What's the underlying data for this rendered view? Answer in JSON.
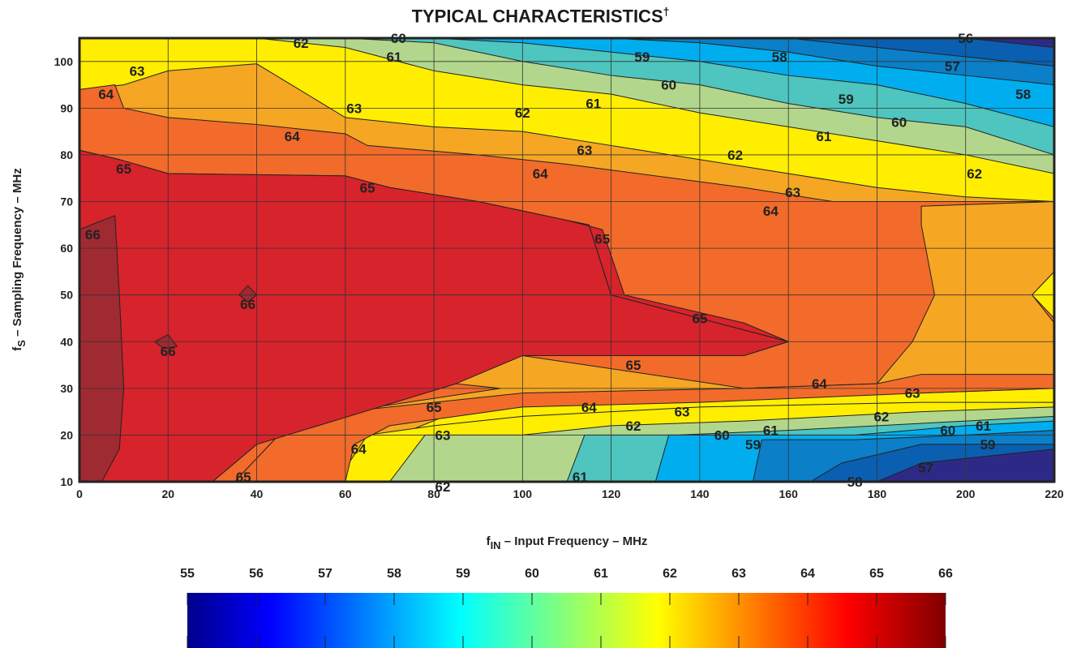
{
  "page": {
    "title": "TYPICAL CHARACTERISTICS",
    "title_mark": "†"
  },
  "chart_data": {
    "type": "heatmap",
    "subtype": "filled-contour",
    "xlabel": "f_IN – Input Frequency – MHz",
    "xlabel_parts": {
      "prefix": "f",
      "sub": "IN",
      "rest": " – Input Frequency – MHz"
    },
    "ylabel": "f_S – Sampling Frequency – MHz",
    "ylabel_parts": {
      "prefix": "f",
      "sub": "S",
      "rest": " – Sampling Frequency – MHz"
    },
    "xlim": [
      0,
      220
    ],
    "ylim": [
      10,
      105
    ],
    "x_ticks": [
      0,
      20,
      40,
      60,
      80,
      100,
      120,
      140,
      160,
      180,
      200,
      220
    ],
    "y_ticks": [
      10,
      20,
      30,
      40,
      50,
      60,
      70,
      80,
      90,
      100
    ],
    "grid": true,
    "colorbar": {
      "position": "bottom",
      "ticks": [
        55,
        56,
        57,
        58,
        59,
        60,
        61,
        62,
        63,
        64,
        65,
        66
      ],
      "min": 55,
      "max": 66
    },
    "level_colors": {
      "56": "#2d2a87",
      "57": "#0a5fb0",
      "58": "#0b7fc7",
      "59": "#00aeef",
      "60": "#4ec5be",
      "61": "#b2d78c",
      "62": "#ffee00",
      "63": "#f5a623",
      "64": "#f26b2a",
      "65": "#d7232b",
      "66": "#a02a32"
    },
    "regions": [
      {
        "level": 65,
        "points": [
          [
            0,
            10
          ],
          [
            0,
            81
          ],
          [
            9,
            79
          ],
          [
            20,
            76
          ],
          [
            60,
            75.5
          ],
          [
            70,
            73
          ],
          [
            90,
            70
          ],
          [
            110,
            66
          ],
          [
            115,
            65
          ],
          [
            120,
            50
          ],
          [
            160,
            40
          ],
          [
            150,
            37
          ],
          [
            100,
            37
          ],
          [
            85,
            31
          ],
          [
            40,
            18
          ],
          [
            30,
            10
          ]
        ]
      },
      {
        "level": 66,
        "points": [
          [
            0,
            10
          ],
          [
            0,
            64
          ],
          [
            8,
            67
          ],
          [
            9,
            50
          ],
          [
            10,
            30
          ],
          [
            9,
            17
          ],
          [
            5,
            10
          ]
        ]
      },
      {
        "level": 66,
        "points": [
          [
            17,
            40
          ],
          [
            20,
            41.5
          ],
          [
            22,
            39
          ],
          [
            19,
            38.5
          ]
        ]
      },
      {
        "level": 66,
        "points": [
          [
            36,
            50
          ],
          [
            38,
            52
          ],
          [
            40,
            50
          ],
          [
            38,
            48.5
          ]
        ]
      },
      {
        "level": 65,
        "points": [
          [
            110,
            66
          ],
          [
            118,
            64
          ],
          [
            123,
            50
          ],
          [
            150,
            44
          ],
          [
            160,
            40
          ],
          [
            120,
            50
          ],
          [
            115,
            65
          ]
        ]
      }
    ],
    "bands": [
      {
        "level": 64,
        "points": [
          [
            0,
            81
          ],
          [
            0,
            94
          ],
          [
            8,
            95
          ],
          [
            10,
            90
          ],
          [
            20,
            88
          ],
          [
            40,
            86.5
          ],
          [
            60,
            84.5
          ],
          [
            65,
            82
          ],
          [
            90,
            80
          ],
          [
            110,
            78
          ],
          [
            150,
            73
          ],
          [
            170,
            70
          ],
          [
            220,
            70
          ],
          [
            220,
            44
          ],
          [
            215,
            50
          ],
          [
            220,
            55
          ],
          [
            220,
            70
          ],
          [
            190,
            69
          ],
          [
            190,
            65
          ],
          [
            193,
            50
          ],
          [
            188,
            40
          ],
          [
            180,
            31
          ],
          [
            150,
            30
          ],
          [
            100,
            37
          ],
          [
            150,
            37
          ],
          [
            160,
            40
          ],
          [
            120,
            50
          ],
          [
            115,
            65
          ],
          [
            110,
            66
          ],
          [
            90,
            70
          ],
          [
            70,
            73
          ],
          [
            60,
            75.5
          ],
          [
            20,
            76
          ],
          [
            9,
            79
          ]
        ]
      },
      {
        "level": 64,
        "points": [
          [
            30,
            10
          ],
          [
            40,
            18
          ],
          [
            85,
            31
          ],
          [
            95,
            30
          ],
          [
            60,
            25
          ],
          [
            45,
            20
          ],
          [
            35,
            10
          ]
        ]
      },
      {
        "level": 64,
        "points": [
          [
            35,
            10
          ],
          [
            45,
            20
          ],
          [
            60,
            25
          ],
          [
            100,
            29
          ],
          [
            150,
            30
          ],
          [
            180,
            31
          ],
          [
            190,
            33
          ],
          [
            220,
            33
          ],
          [
            220,
            30
          ],
          [
            190,
            29
          ],
          [
            140,
            27
          ],
          [
            100,
            26
          ],
          [
            70,
            22
          ],
          [
            62,
            18
          ],
          [
            60,
            10
          ]
        ]
      }
    ],
    "contour_labels": [
      {
        "x": 13,
        "y": 98,
        "v": "63"
      },
      {
        "x": 6,
        "y": 93,
        "v": "64"
      },
      {
        "x": 50,
        "y": 104,
        "v": "62"
      },
      {
        "x": 72,
        "y": 105,
        "v": "60"
      },
      {
        "x": 71,
        "y": 101,
        "v": "61"
      },
      {
        "x": 127,
        "y": 101,
        "v": "59"
      },
      {
        "x": 158,
        "y": 101,
        "v": "58"
      },
      {
        "x": 200,
        "y": 105,
        "v": "56"
      },
      {
        "x": 197,
        "y": 99,
        "v": "57"
      },
      {
        "x": 133,
        "y": 95,
        "v": "60"
      },
      {
        "x": 116,
        "y": 91,
        "v": "61"
      },
      {
        "x": 100,
        "y": 89,
        "v": "62"
      },
      {
        "x": 62,
        "y": 90,
        "v": "63"
      },
      {
        "x": 48,
        "y": 84,
        "v": "64"
      },
      {
        "x": 173,
        "y": 92,
        "v": "59"
      },
      {
        "x": 185,
        "y": 87,
        "v": "60"
      },
      {
        "x": 168,
        "y": 84,
        "v": "61"
      },
      {
        "x": 213,
        "y": 93,
        "v": "58"
      },
      {
        "x": 114,
        "y": 81,
        "v": "63"
      },
      {
        "x": 148,
        "y": 80,
        "v": "62"
      },
      {
        "x": 10,
        "y": 77,
        "v": "65"
      },
      {
        "x": 104,
        "y": 76,
        "v": "64"
      },
      {
        "x": 65,
        "y": 73,
        "v": "65"
      },
      {
        "x": 161,
        "y": 72,
        "v": "63"
      },
      {
        "x": 202,
        "y": 76,
        "v": "62"
      },
      {
        "x": 156,
        "y": 68,
        "v": "64"
      },
      {
        "x": 118,
        "y": 62,
        "v": "65"
      },
      {
        "x": 3,
        "y": 63,
        "v": "66"
      },
      {
        "x": 38,
        "y": 48,
        "v": "66"
      },
      {
        "x": 20,
        "y": 38,
        "v": "66"
      },
      {
        "x": 140,
        "y": 45,
        "v": "65"
      },
      {
        "x": 125,
        "y": 35,
        "v": "65"
      },
      {
        "x": 167,
        "y": 31,
        "v": "64"
      },
      {
        "x": 188,
        "y": 29,
        "v": "63"
      },
      {
        "x": 80,
        "y": 26,
        "v": "65"
      },
      {
        "x": 115,
        "y": 26,
        "v": "64"
      },
      {
        "x": 181,
        "y": 24,
        "v": "62"
      },
      {
        "x": 136,
        "y": 25,
        "v": "63"
      },
      {
        "x": 125,
        "y": 22,
        "v": "62"
      },
      {
        "x": 156,
        "y": 21,
        "v": "61"
      },
      {
        "x": 204,
        "y": 22,
        "v": "61"
      },
      {
        "x": 196,
        "y": 21,
        "v": "60"
      },
      {
        "x": 82,
        "y": 20,
        "v": "63"
      },
      {
        "x": 145,
        "y": 20,
        "v": "60"
      },
      {
        "x": 152,
        "y": 18,
        "v": "59"
      },
      {
        "x": 205,
        "y": 18,
        "v": "59"
      },
      {
        "x": 63,
        "y": 17,
        "v": "64"
      },
      {
        "x": 37,
        "y": 11,
        "v": "65"
      },
      {
        "x": 113,
        "y": 11,
        "v": "61"
      },
      {
        "x": 82,
        "y": 9,
        "v": "62"
      },
      {
        "x": 175,
        "y": 10,
        "v": "58"
      },
      {
        "x": 191,
        "y": 13,
        "v": "57"
      }
    ]
  }
}
